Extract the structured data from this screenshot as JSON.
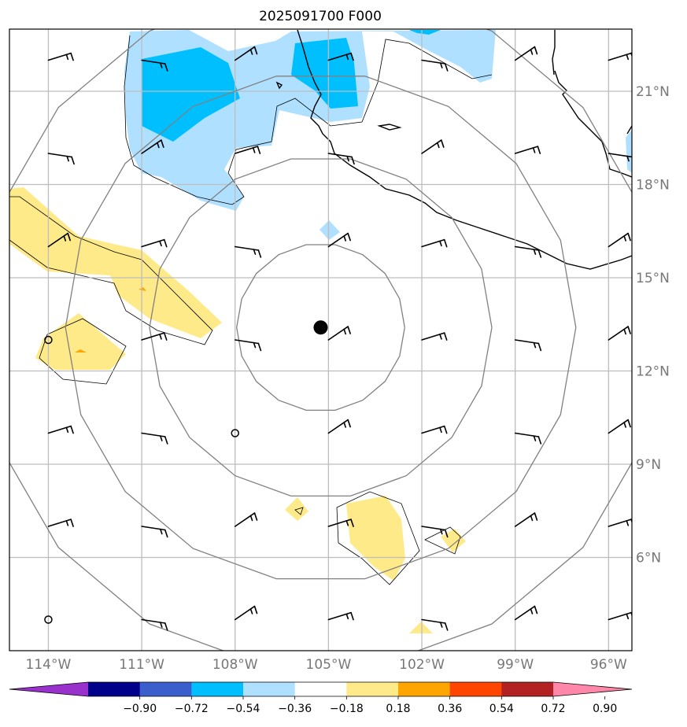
{
  "chart_data": {
    "type": "contour-map",
    "title": "2025091700 F000",
    "lon_ticks": [
      -114,
      -111,
      -108,
      -105,
      -102,
      -99,
      -96
    ],
    "lat_ticks": [
      6,
      9,
      12,
      15,
      18,
      21
    ],
    "lon_labels": [
      "114°W",
      "111°W",
      "108°W",
      "105°W",
      "102°W",
      "99°W",
      "96°W"
    ],
    "lat_labels": [
      "6°N",
      "9°N",
      "12°N",
      "15°N",
      "18°N",
      "21°N"
    ],
    "lon_range": [
      -115.25,
      -95.25
    ],
    "lat_range": [
      3.0,
      23.0
    ],
    "storm_center": {
      "lon": -105.25,
      "lat": 13.4
    },
    "range_ring_radii_deg": [
      2.7,
      5.5,
      8.2,
      11.0
    ],
    "colorbar": {
      "levels": [
        -0.9,
        -0.72,
        -0.54,
        -0.36,
        -0.18,
        0.18,
        0.36,
        0.54,
        0.72,
        0.9
      ],
      "tick_labels": [
        "−0.90",
        "−0.72",
        "−0.54",
        "−0.36",
        "−0.18",
        "0.18",
        "0.36",
        "0.54",
        "0.72",
        "0.90"
      ],
      "colors": [
        "#9932cc",
        "#00008b",
        "#3a5fcd",
        "#00bfff",
        "#b0e0ff",
        "#ffffff",
        "#ffea8a",
        "#ffa500",
        "#ff4500",
        "#b22222",
        "#ff88aa"
      ]
    },
    "wind_barbs": [
      {
        "lon": -114,
        "lat": 22
      },
      {
        "lon": -111,
        "lat": 22
      },
      {
        "lon": -108,
        "lat": 22
      },
      {
        "lon": -105,
        "lat": 22
      },
      {
        "lon": -102,
        "lat": 22
      },
      {
        "lon": -99,
        "lat": 22
      },
      {
        "lon": -96,
        "lat": 22
      },
      {
        "lon": -114,
        "lat": 19
      },
      {
        "lon": -111,
        "lat": 19
      },
      {
        "lon": -108,
        "lat": 19
      },
      {
        "lon": -105,
        "lat": 19
      },
      {
        "lon": -102,
        "lat": 19
      },
      {
        "lon": -99,
        "lat": 19
      },
      {
        "lon": -96,
        "lat": 19
      },
      {
        "lon": -114,
        "lat": 16
      },
      {
        "lon": -111,
        "lat": 16
      },
      {
        "lon": -108,
        "lat": 16
      },
      {
        "lon": -105,
        "lat": 16
      },
      {
        "lon": -102,
        "lat": 16
      },
      {
        "lon": -99,
        "lat": 16
      },
      {
        "lon": -96,
        "lat": 16
      },
      {
        "lon": -111,
        "lat": 13
      },
      {
        "lon": -108,
        "lat": 13
      },
      {
        "lon": -105,
        "lat": 13
      },
      {
        "lon": -102,
        "lat": 13
      },
      {
        "lon": -99,
        "lat": 13
      },
      {
        "lon": -96,
        "lat": 13
      },
      {
        "lon": -114,
        "lat": 10
      },
      {
        "lon": -111,
        "lat": 10
      },
      {
        "lon": -105,
        "lat": 10
      },
      {
        "lon": -102,
        "lat": 10
      },
      {
        "lon": -99,
        "lat": 10
      },
      {
        "lon": -96,
        "lat": 10
      },
      {
        "lon": -114,
        "lat": 7
      },
      {
        "lon": -111,
        "lat": 7
      },
      {
        "lon": -108,
        "lat": 7
      },
      {
        "lon": -105,
        "lat": 7
      },
      {
        "lon": -102,
        "lat": 7
      },
      {
        "lon": -99,
        "lat": 7
      },
      {
        "lon": -96,
        "lat": 7
      },
      {
        "lon": -111,
        "lat": 4
      },
      {
        "lon": -108,
        "lat": 4
      },
      {
        "lon": -105,
        "lat": 4
      },
      {
        "lon": -102,
        "lat": 4
      },
      {
        "lon": -99,
        "lat": 4
      },
      {
        "lon": -96,
        "lat": 4
      }
    ],
    "calm_points": [
      {
        "lon": -114,
        "lat": 13
      },
      {
        "lon": -108,
        "lat": 10
      },
      {
        "lon": -114,
        "lat": 4
      }
    ]
  }
}
